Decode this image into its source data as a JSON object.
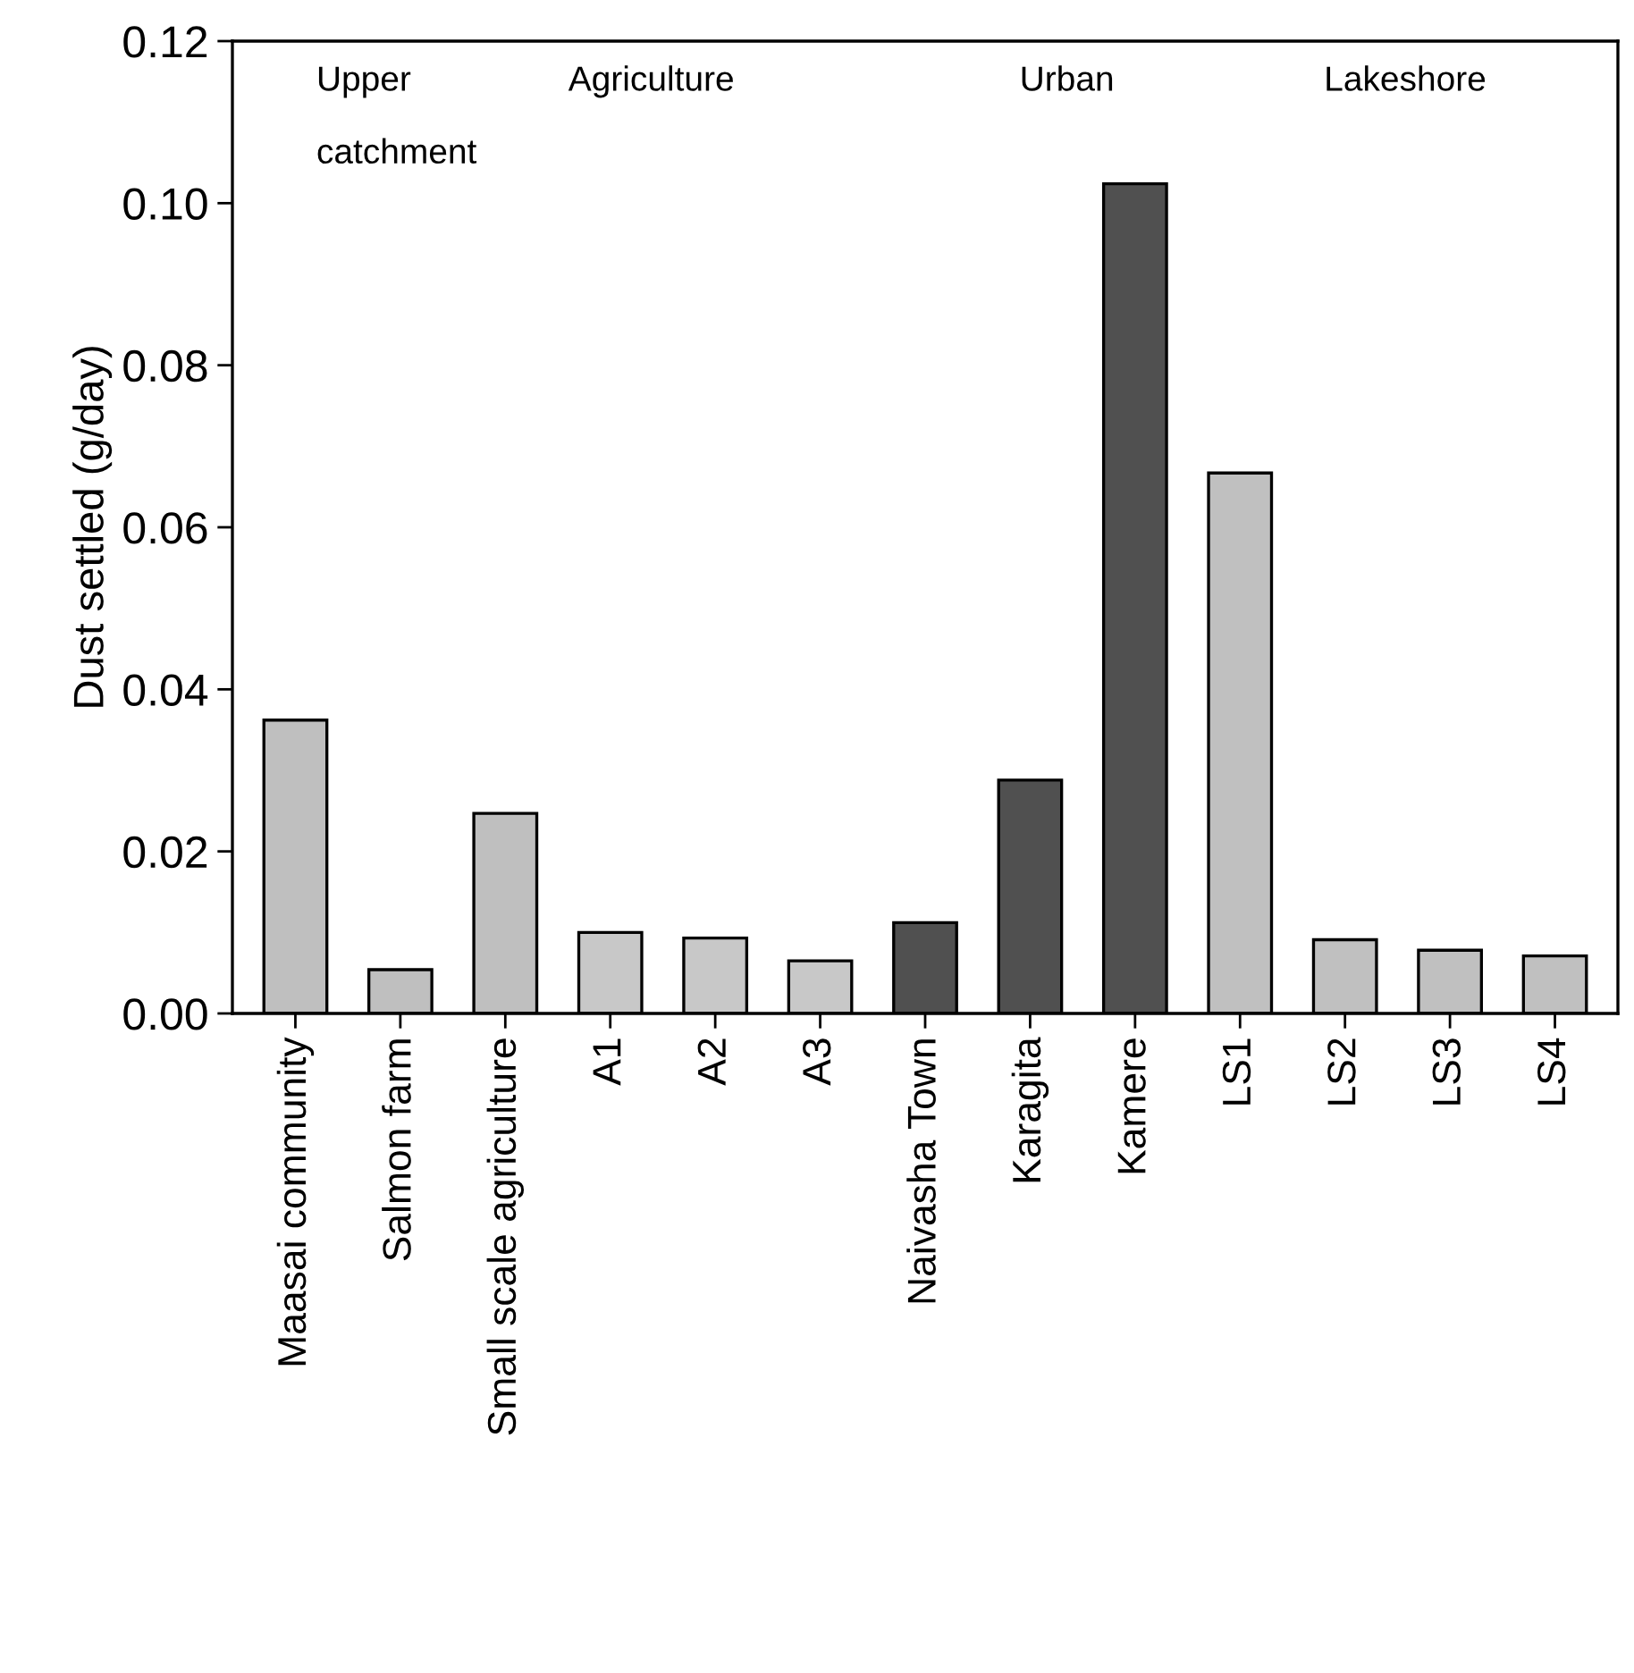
{
  "chart_data": {
    "type": "bar",
    "ylabel": "Dust settled (g/day)",
    "categories": [
      "Maasai community",
      "Salmon farm",
      "Small scale agriculture",
      "A1",
      "A2",
      "A3",
      "Naivasha Town",
      "Karagita",
      "Kamere",
      "LS1",
      "LS2",
      "LS3",
      "LS4"
    ],
    "values": [
      0.0362,
      0.0054,
      0.0247,
      0.01,
      0.0093,
      0.0065,
      0.0112,
      0.0288,
      0.1024,
      0.0667,
      0.0091,
      0.0078,
      0.0071
    ],
    "colors": [
      "#bfbfbf",
      "#bfbfbf",
      "#bfbfbf",
      "#c8c8c8",
      "#c8c8c8",
      "#c8c8c8",
      "#505050",
      "#505050",
      "#505050",
      "#c0c0c0",
      "#c0c0c0",
      "#c0c0c0",
      "#c0c0c0"
    ],
    "ylim": [
      0,
      0.12
    ],
    "yticks": [
      {
        "value": 0,
        "label": "0.00"
      },
      {
        "value": 0.02,
        "label": "0.02"
      },
      {
        "value": 0.04,
        "label": "0.04"
      },
      {
        "value": 0.06,
        "label": "0.06"
      },
      {
        "value": 0.08,
        "label": "0.08"
      },
      {
        "value": 0.1,
        "label": "0.10"
      },
      {
        "value": 0.12,
        "label": "0.12"
      }
    ],
    "annotations": [
      "Upper\ncatchment",
      "Agriculture",
      "Urban",
      "Lakeshore"
    ],
    "grid": false,
    "legend": false
  }
}
